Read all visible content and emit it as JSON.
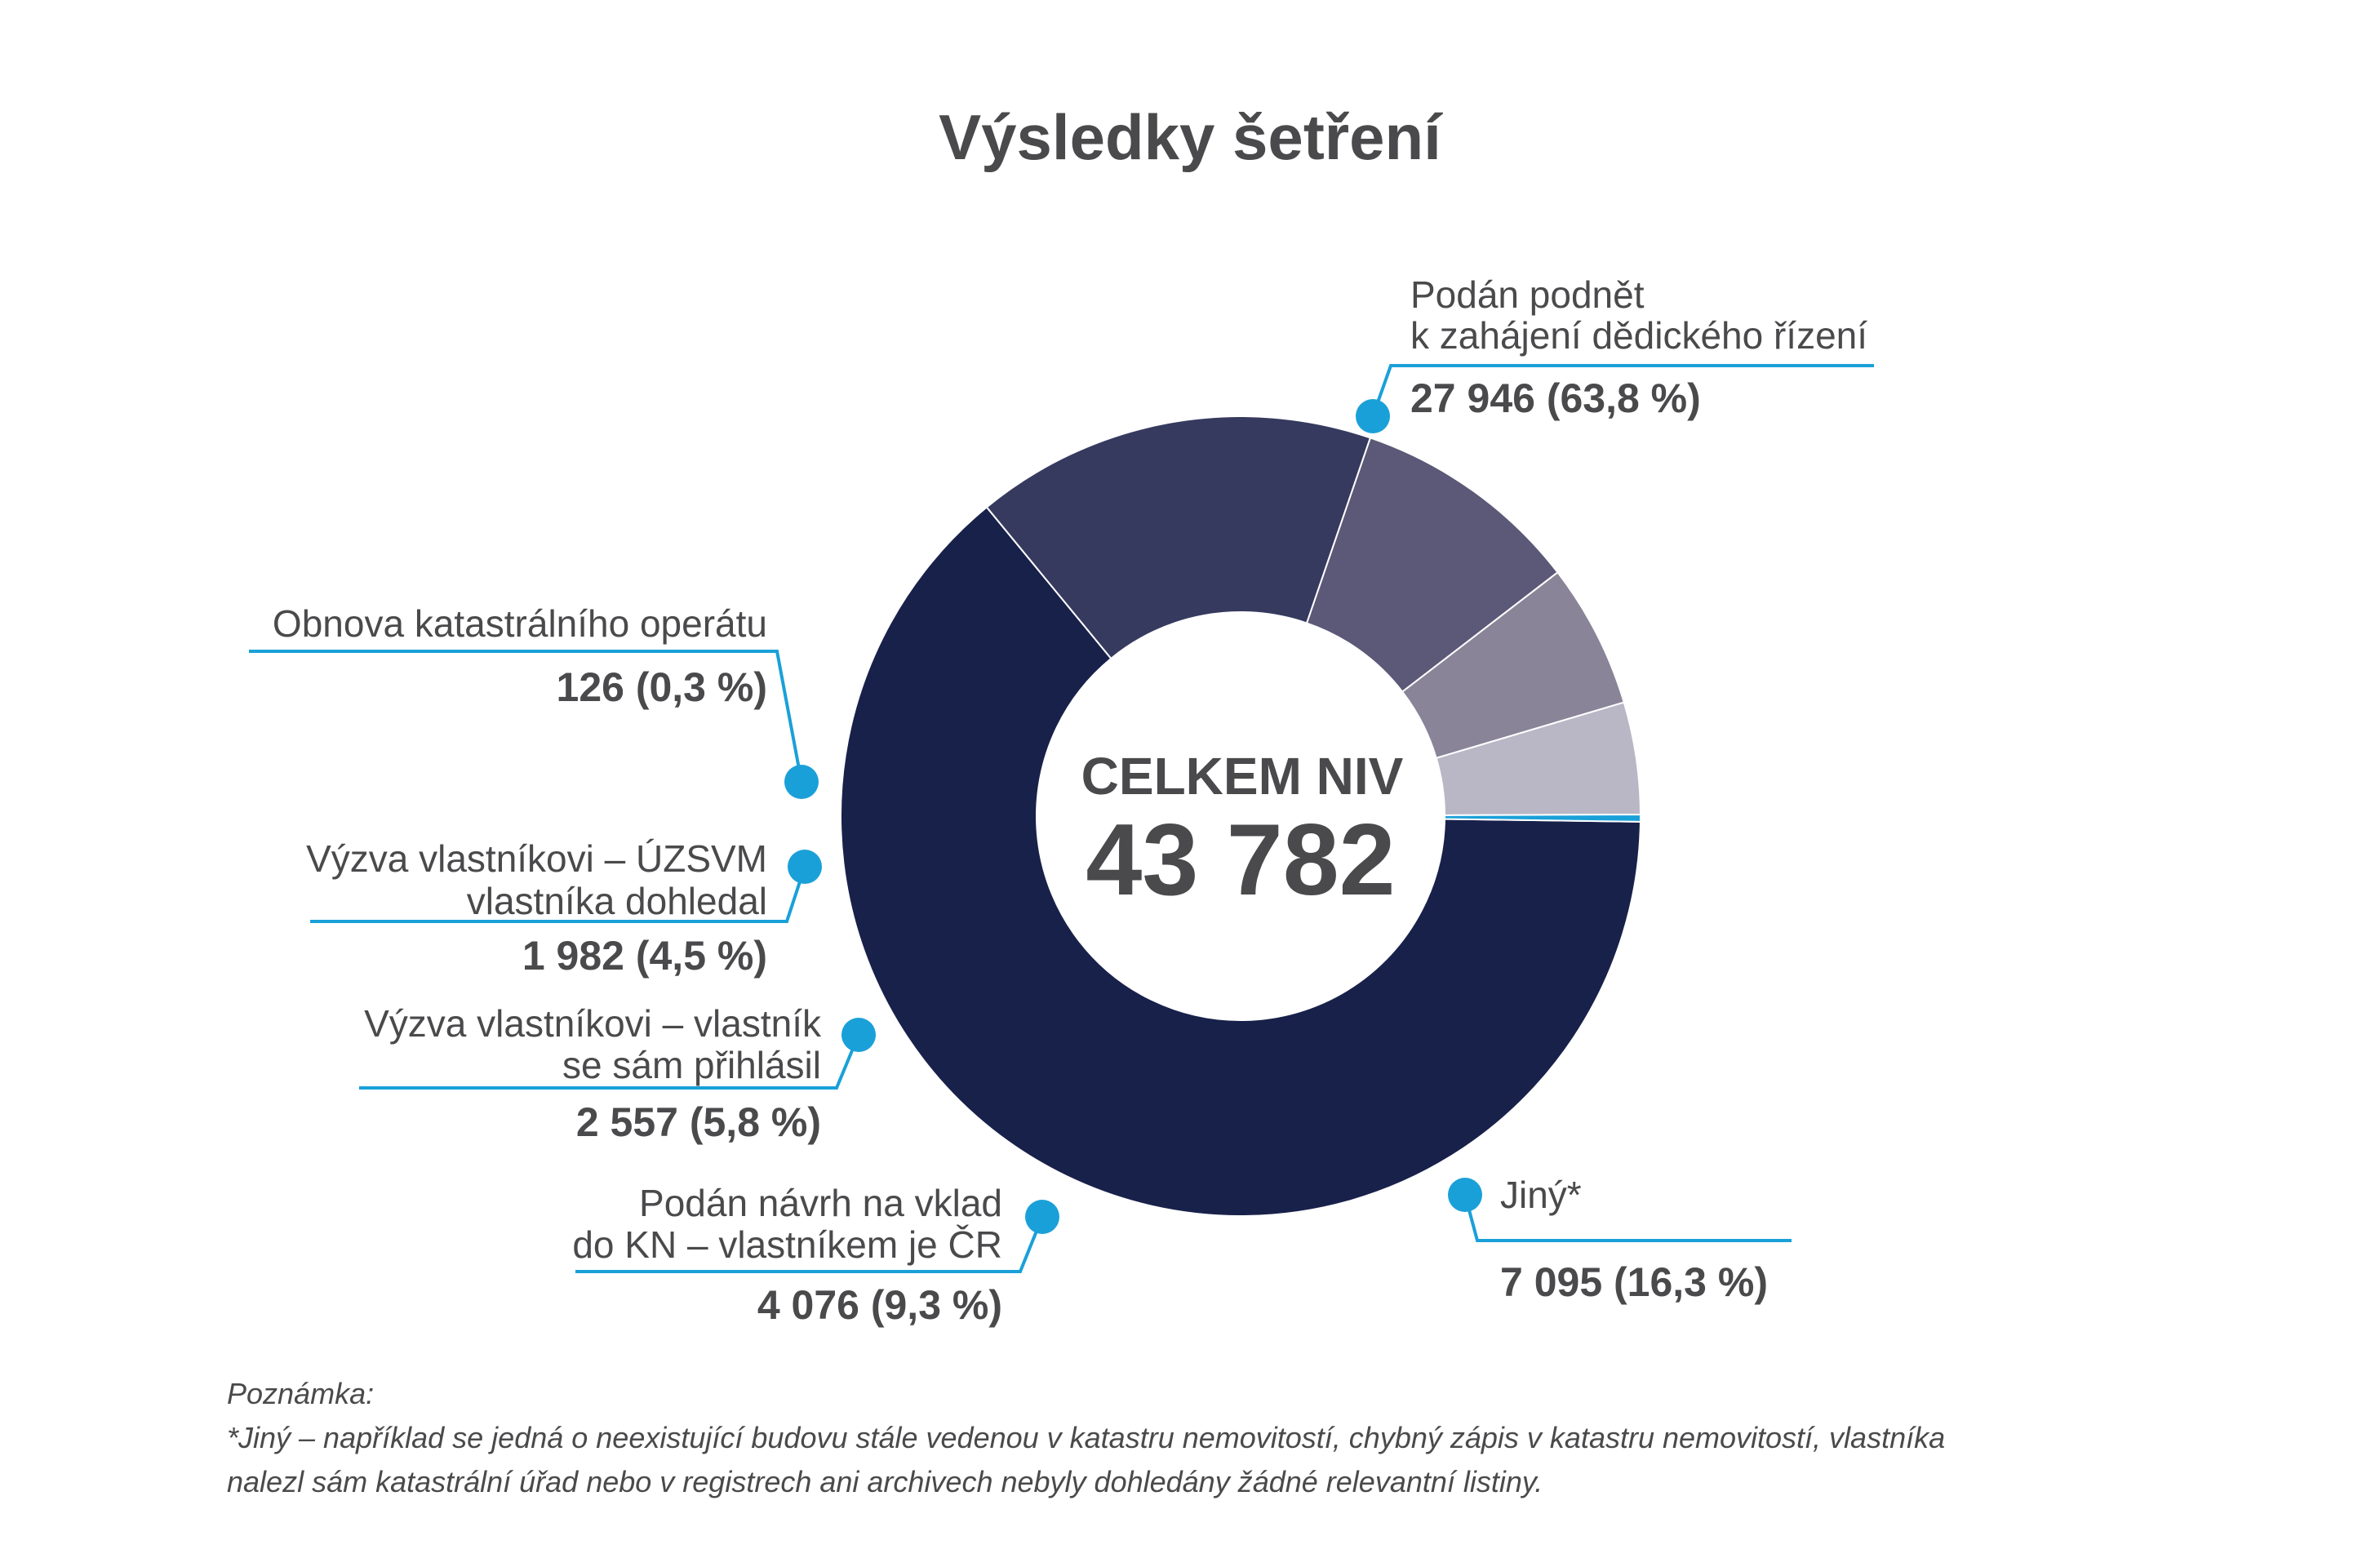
{
  "chart_data": {
    "type": "pie",
    "variant": "donut",
    "title": "Výsledky šetření",
    "center": {
      "label": "CELKEM NIV",
      "value": "43 782"
    },
    "total": 43782,
    "slices": [
      {
        "id": "podan-podnet",
        "label": [
          "Podán podnět",
          "k zahájení dědického řízení"
        ],
        "value": 27946,
        "percent": 63.8,
        "value_text": "27 946 (63,8 %)",
        "color": "#18214a"
      },
      {
        "id": "jiny",
        "label": [
          "Jiný*"
        ],
        "value": 7095,
        "percent": 16.3,
        "value_text": "7 095 (16,3 %)",
        "color": "#363a5f"
      },
      {
        "id": "navrh-vklad",
        "label": [
          "Podán návrh na vklad",
          "do KN – vlastníkem je ČR"
        ],
        "value": 4076,
        "percent": 9.3,
        "value_text": "4 076 (9,3 %)",
        "color": "#5c5877"
      },
      {
        "id": "vyzva-prihlasil",
        "label": [
          "Výzva vlastníkovi – vlastník",
          "se sám přihlásil"
        ],
        "value": 2557,
        "percent": 5.8,
        "value_text": "2 557 (5,8 %)",
        "color": "#8a8499"
      },
      {
        "id": "vyzva-uzsvm",
        "label": [
          "Výzva vlastníkovi – ÚZSVM",
          "vlastníka dohledal"
        ],
        "value": 1982,
        "percent": 4.5,
        "value_text": "1 982 (4,5 %)",
        "color": "#b9b7c6"
      },
      {
        "id": "obnova",
        "label": [
          "Obnova katastrálního operátu"
        ],
        "value": 126,
        "percent": 0.3,
        "value_text": "126 (0,3 %)",
        "color": "#1aa0d8"
      }
    ],
    "leader_color": "#1aa0d8",
    "text_color": "#4a4a4c"
  },
  "note": {
    "heading": "Poznámka:",
    "lines": [
      "*Jiný – například se jedná o neexistující budovu stále vedenou v katastru nemovitostí, chybný zápis v katastru nemovitostí, vlastníka",
      "nalezl sám katastrální úřad nebo v registrech ani archivech nebyly dohledány žádné relevantní listiny."
    ]
  }
}
